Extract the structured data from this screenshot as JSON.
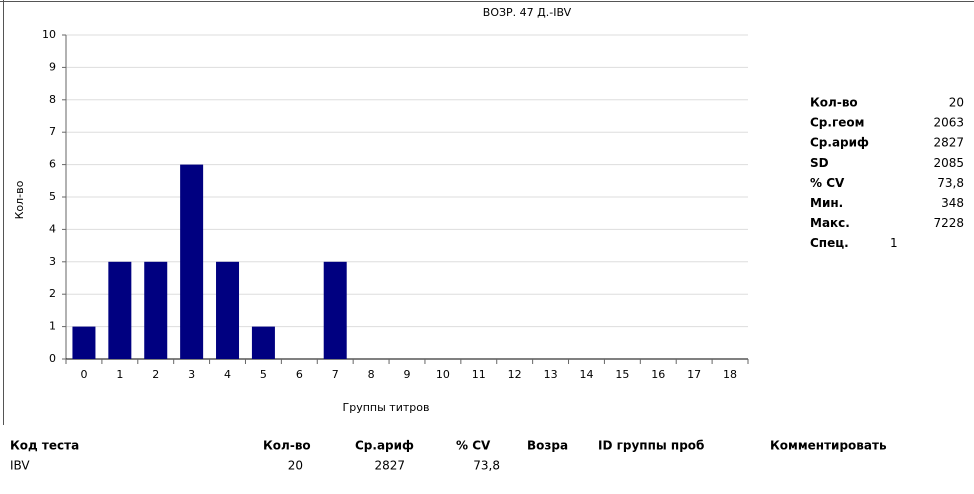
{
  "chart_data": {
    "type": "bar",
    "title": "ВОЗР. 47 Д.-IBV",
    "x_label": "Группы титров",
    "y_label": "Кол-во",
    "categories": [
      "0",
      "1",
      "2",
      "3",
      "4",
      "5",
      "6",
      "7",
      "8",
      "9",
      "10",
      "11",
      "12",
      "13",
      "14",
      "15",
      "16",
      "17",
      "18"
    ],
    "values": [
      1,
      3,
      3,
      6,
      3,
      1,
      0,
      3,
      0,
      0,
      0,
      0,
      0,
      0,
      0,
      0,
      0,
      0,
      0
    ],
    "color": "#000080",
    "ylim": [
      0,
      10
    ],
    "yticks": [
      0,
      1,
      2,
      3,
      4,
      5,
      6,
      7,
      8,
      9,
      10
    ],
    "grid": true
  },
  "stats": [
    {
      "label": "Кол-во",
      "value": "20"
    },
    {
      "label": "Ср.геом",
      "value": "2063"
    },
    {
      "label": "Ср.ариф",
      "value": "2827"
    },
    {
      "label": "SD",
      "value": "2085"
    },
    {
      "label": "% CV",
      "value": "73,8"
    },
    {
      "label": "Мин.",
      "value": "348"
    },
    {
      "label": "Макс.",
      "value": "7228"
    },
    {
      "label": "Спец.",
      "value": "1"
    }
  ],
  "table": {
    "headers": [
      "Код теста",
      "Кол-во",
      "Ср.ариф",
      "% CV",
      "Возра",
      "ID группы проб",
      "Комментировать"
    ],
    "rows": [
      [
        "IBV",
        "20",
        "2827",
        "73,8"
      ]
    ]
  }
}
